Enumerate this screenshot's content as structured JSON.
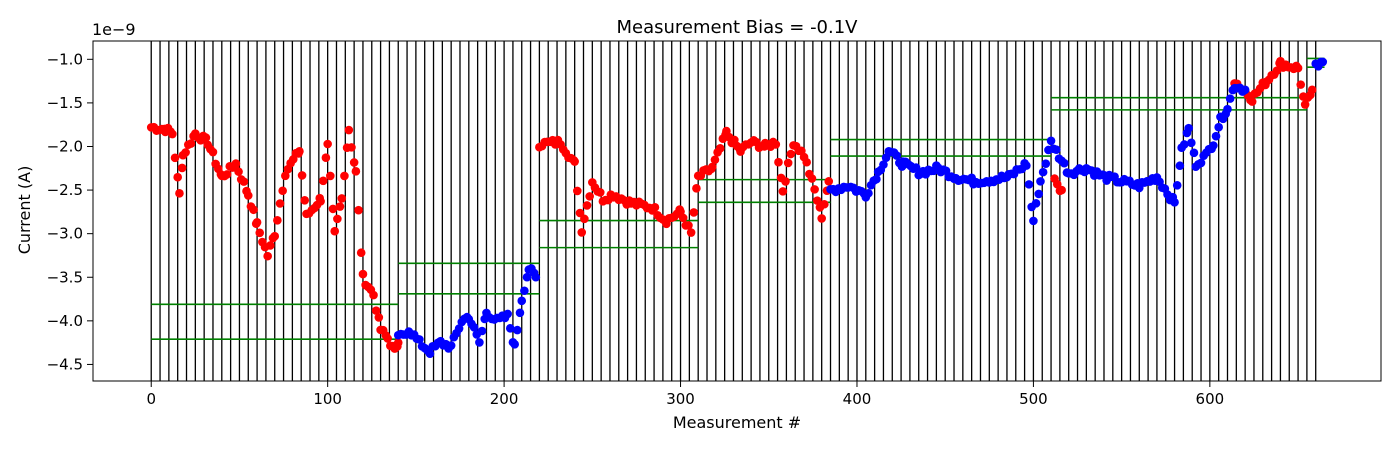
{
  "chart_data": {
    "type": "scatter",
    "title": "Measurement Bias = -0.1V",
    "xlabel": "Measurement #",
    "ylabel": "Current (A)",
    "y_offset_text": "1e−9",
    "xlim": [
      -33,
      697
    ],
    "ylim": [
      -4.69,
      -0.79
    ],
    "xticks": [
      0,
      100,
      200,
      300,
      400,
      500,
      600
    ],
    "xtick_labels": [
      "0",
      "100",
      "200",
      "300",
      "400",
      "500",
      "600"
    ],
    "yticks": [
      -1.0,
      -1.5,
      -2.0,
      -2.5,
      -3.0,
      -3.5,
      -4.0,
      -4.5
    ],
    "ytick_labels": [
      "−1.0",
      "−1.5",
      "−2.0",
      "−2.5",
      "−3.0",
      "−3.5",
      "−4.0",
      "−4.5"
    ],
    "grid": false,
    "vertical_lines": {
      "start": 0,
      "end": 660,
      "step": 5,
      "color": "#000000"
    },
    "band_lines": {
      "color": "#008000",
      "segments": [
        {
          "x0": 0,
          "x1": 140,
          "y": -3.81
        },
        {
          "x0": 0,
          "x1": 140,
          "y": -4.21
        },
        {
          "x0": 140,
          "x1": 220,
          "y": -3.34
        },
        {
          "x0": 140,
          "x1": 220,
          "y": -3.69
        },
        {
          "x0": 220,
          "x1": 310,
          "y": -2.85
        },
        {
          "x0": 220,
          "x1": 310,
          "y": -3.16
        },
        {
          "x0": 310,
          "x1": 385,
          "y": -2.38
        },
        {
          "x0": 310,
          "x1": 385,
          "y": -2.64
        },
        {
          "x0": 385,
          "x1": 510,
          "y": -1.92
        },
        {
          "x0": 385,
          "x1": 510,
          "y": -2.11
        },
        {
          "x0": 510,
          "x1": 655,
          "y": -1.44
        },
        {
          "x0": 510,
          "x1": 655,
          "y": -1.58
        },
        {
          "x0": 655,
          "x1": 665,
          "y": -0.99
        },
        {
          "x0": 655,
          "x1": 665,
          "y": -1.09
        }
      ]
    },
    "series": [
      {
        "color": "#ff0000",
        "anchors": [
          [
            0,
            -1.78
          ],
          [
            8,
            -1.8
          ],
          [
            12,
            -1.85
          ],
          [
            16,
            -2.55
          ],
          [
            18,
            -2.1
          ],
          [
            25,
            -1.85
          ],
          [
            32,
            -1.95
          ],
          [
            40,
            -2.35
          ],
          [
            48,
            -2.2
          ],
          [
            55,
            -2.55
          ],
          [
            60,
            -2.9
          ],
          [
            66,
            -3.25
          ],
          [
            70,
            -3.0
          ],
          [
            76,
            -2.3
          ],
          [
            84,
            -2.05
          ],
          [
            88,
            -2.8
          ],
          [
            96,
            -2.6
          ],
          [
            100,
            -2.0
          ],
          [
            104,
            -3.0
          ],
          [
            108,
            -2.6
          ],
          [
            112,
            -1.8
          ],
          [
            116,
            -2.3
          ],
          [
            120,
            -3.5
          ],
          [
            126,
            -3.7
          ],
          [
            130,
            -4.1
          ],
          [
            134,
            -4.2
          ],
          [
            138,
            -4.35
          ],
          [
            140,
            -4.25
          ],
          [
            220,
            -1.97
          ],
          [
            232,
            -1.95
          ],
          [
            240,
            -2.2
          ],
          [
            244,
            -2.95
          ],
          [
            250,
            -2.4
          ],
          [
            256,
            -2.6
          ],
          [
            262,
            -2.55
          ],
          [
            272,
            -2.65
          ],
          [
            284,
            -2.7
          ],
          [
            292,
            -2.85
          ],
          [
            300,
            -2.75
          ],
          [
            306,
            -3.0
          ],
          [
            310,
            -2.35
          ],
          [
            318,
            -2.25
          ],
          [
            326,
            -1.85
          ],
          [
            334,
            -2.05
          ],
          [
            340,
            -1.95
          ],
          [
            348,
            -2.0
          ],
          [
            354,
            -1.95
          ],
          [
            358,
            -2.5
          ],
          [
            364,
            -1.95
          ],
          [
            370,
            -2.1
          ],
          [
            376,
            -2.5
          ],
          [
            380,
            -2.8
          ],
          [
            384,
            -2.4
          ],
          [
            512,
            -2.4
          ],
          [
            516,
            -2.5
          ],
          [
            614,
            -1.25
          ],
          [
            624,
            -1.45
          ],
          [
            632,
            -1.25
          ],
          [
            640,
            -1.05
          ],
          [
            650,
            -1.1
          ],
          [
            654,
            -1.55
          ],
          [
            658,
            -1.35
          ]
        ]
      },
      {
        "color": "#0000ff",
        "anchors": [
          [
            140,
            -4.2
          ],
          [
            146,
            -4.1
          ],
          [
            152,
            -4.25
          ],
          [
            158,
            -4.35
          ],
          [
            164,
            -4.25
          ],
          [
            170,
            -4.3
          ],
          [
            176,
            -4.0
          ],
          [
            180,
            -3.95
          ],
          [
            186,
            -4.25
          ],
          [
            190,
            -3.9
          ],
          [
            196,
            -4.0
          ],
          [
            202,
            -3.95
          ],
          [
            206,
            -4.3
          ],
          [
            210,
            -3.75
          ],
          [
            214,
            -3.4
          ],
          [
            218,
            -3.5
          ],
          [
            385,
            -2.5
          ],
          [
            395,
            -2.45
          ],
          [
            405,
            -2.55
          ],
          [
            412,
            -2.3
          ],
          [
            418,
            -2.05
          ],
          [
            426,
            -2.2
          ],
          [
            436,
            -2.3
          ],
          [
            446,
            -2.25
          ],
          [
            456,
            -2.35
          ],
          [
            466,
            -2.4
          ],
          [
            476,
            -2.38
          ],
          [
            486,
            -2.35
          ],
          [
            496,
            -2.2
          ],
          [
            500,
            -2.85
          ],
          [
            504,
            -2.4
          ],
          [
            510,
            -1.95
          ],
          [
            520,
            -2.3
          ],
          [
            530,
            -2.25
          ],
          [
            540,
            -2.35
          ],
          [
            550,
            -2.4
          ],
          [
            560,
            -2.45
          ],
          [
            570,
            -2.35
          ],
          [
            580,
            -2.65
          ],
          [
            584,
            -2.05
          ],
          [
            588,
            -1.8
          ],
          [
            592,
            -2.2
          ],
          [
            598,
            -2.1
          ],
          [
            602,
            -1.95
          ],
          [
            606,
            -1.7
          ],
          [
            610,
            -1.55
          ],
          [
            614,
            -1.3
          ],
          [
            620,
            -1.35
          ],
          [
            660,
            -1.05
          ],
          [
            664,
            -1.03
          ]
        ]
      }
    ]
  }
}
